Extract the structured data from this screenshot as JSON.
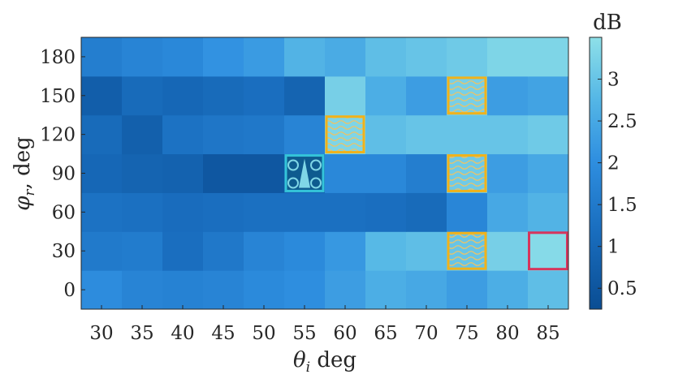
{
  "chart_data": {
    "type": "heatmap",
    "x_label_symbol": "θ",
    "x_label_sub": "i",
    "x_label_unit": "deg",
    "y_label_symbol": "φ",
    "y_label_sub": "r",
    "y_label_unit": "deg",
    "colorbar_title": "dB",
    "x_ticks": [
      "30",
      "35",
      "40",
      "45",
      "50",
      "55",
      "60",
      "65",
      "70",
      "75",
      "80",
      "85"
    ],
    "y_ticks": [
      "0",
      "30",
      "60",
      "90",
      "120",
      "150",
      "180"
    ],
    "colorbar_ticks": [
      "0.5",
      "1",
      "1.5",
      "2",
      "2.5",
      "3"
    ],
    "x": [
      30,
      35,
      40,
      45,
      50,
      55,
      60,
      65,
      70,
      75,
      80,
      85
    ],
    "y": [
      0,
      30,
      60,
      90,
      120,
      150,
      180
    ],
    "clim": [
      0.25,
      3.5
    ],
    "z": [
      [
        1.95,
        1.75,
        1.7,
        1.75,
        1.9,
        2.0,
        2.3,
        2.6,
        2.5,
        2.3,
        2.6,
        2.9
      ],
      [
        1.5,
        1.55,
        1.2,
        1.45,
        1.75,
        1.9,
        2.2,
        2.8,
        2.9,
        3.0,
        3.2,
        3.4
      ],
      [
        1.3,
        1.25,
        1.15,
        1.2,
        1.25,
        1.25,
        1.25,
        1.2,
        1.1,
        1.8,
        2.5,
        2.7
      ],
      [
        1.0,
        0.9,
        0.85,
        0.55,
        0.55,
        0.9,
        1.85,
        1.85,
        1.6,
        3.1,
        2.3,
        2.5
      ],
      [
        1.1,
        0.8,
        1.3,
        1.4,
        1.45,
        1.75,
        3.3,
        2.9,
        3.0,
        3.0,
        3.0,
        3.1
      ],
      [
        0.75,
        1.1,
        1.0,
        1.1,
        1.2,
        0.9,
        3.2,
        2.6,
        2.3,
        3.2,
        2.3,
        2.4
      ],
      [
        1.6,
        1.75,
        1.85,
        2.1,
        2.25,
        2.7,
        2.55,
        2.9,
        3.0,
        3.1,
        3.3,
        3.3
      ]
    ],
    "highlight_cells_yellow_wave": [
      [
        60,
        120
      ],
      [
        75,
        150
      ],
      [
        75,
        90
      ],
      [
        75,
        30
      ]
    ],
    "highlight_cell_cyan_pattern": [
      55,
      90
    ],
    "highlight_cell_red_outline": [
      85,
      30
    ],
    "colors": {
      "colormap_low": "#0a4d93",
      "colormap_high": "#8ee0e8",
      "yellow_box": "#f0b21b",
      "cyan_box": "#34c4d9",
      "red_box": "#d6355c"
    }
  }
}
